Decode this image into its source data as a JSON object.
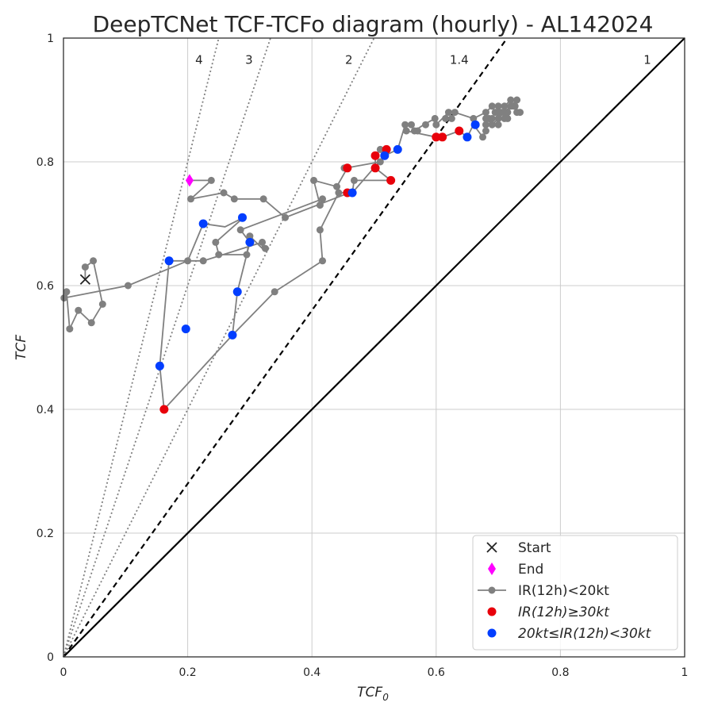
{
  "chart_data": {
    "type": "line",
    "title": "DeepTCNet TCF-TCFo diagram (hourly) - AL142024",
    "xlabel_main": "TCF",
    "xlabel_sub": "0",
    "ylabel": "TCF",
    "xlim": [
      0,
      1
    ],
    "ylim": [
      0,
      1
    ],
    "xticks": [
      "0",
      "0.2",
      "0.4",
      "0.6",
      "0.8",
      "1"
    ],
    "yticks": [
      "0",
      "0.2",
      "0.4",
      "0.6",
      "0.8",
      "1"
    ],
    "xtick_values": [
      0,
      0.2,
      0.4,
      0.6,
      0.8,
      1
    ],
    "ytick_values": [
      0,
      0.2,
      0.4,
      0.6,
      0.8,
      1
    ],
    "grid": true,
    "legend_position": "lower-right",
    "reference_lines": [
      {
        "ratio": 1,
        "label": "1",
        "style": "solid"
      },
      {
        "ratio": 1.4,
        "label": "1.4",
        "style": "dashed"
      },
      {
        "ratio": 2,
        "label": "2",
        "style": "dotted"
      },
      {
        "ratio": 3,
        "label": "3",
        "style": "dotted"
      },
      {
        "ratio": 4,
        "label": "4",
        "style": "dotted"
      }
    ],
    "legend": [
      {
        "label": "Start",
        "marker": "x",
        "color": "#222222"
      },
      {
        "label": "End",
        "marker": "diamond",
        "color": "#ff00ff"
      },
      {
        "label": "IR(12h)<20kt",
        "marker": "line-dot",
        "color": "#808080"
      },
      {
        "label": "IR(12h)≥30kt",
        "marker": "dot",
        "color": "#e8000b",
        "italic": true
      },
      {
        "label": "20kt≤IR(12h)<30kt",
        "marker": "dot",
        "color": "#023eff",
        "italic": true
      }
    ],
    "colors": {
      "track": "#808080",
      "high": "#e8000b",
      "mid": "#023eff",
      "end": "#ff00ff",
      "start": "#222222"
    },
    "start": [
      0.035,
      0.61
    ],
    "end": [
      0.203,
      0.77
    ],
    "track": [
      [
        0.035,
        0.61
      ],
      [
        0.035,
        0.63
      ],
      [
        0.048,
        0.64
      ],
      [
        0.063,
        0.57
      ],
      [
        0.045,
        0.54
      ],
      [
        0.024,
        0.56
      ],
      [
        0.01,
        0.53
      ],
      [
        0.005,
        0.59
      ],
      [
        0.001,
        0.58
      ],
      [
        0.104,
        0.6
      ],
      [
        0.2,
        0.64
      ],
      [
        0.17,
        0.64
      ],
      [
        0.21,
        0.64
      ],
      [
        0.225,
        0.64
      ],
      [
        0.32,
        0.67
      ],
      [
        0.32,
        0.66
      ],
      [
        0.3,
        0.68
      ],
      [
        0.295,
        0.65
      ],
      [
        0.25,
        0.65
      ],
      [
        0.245,
        0.67
      ],
      [
        0.29,
        0.71
      ],
      [
        0.26,
        0.695
      ],
      [
        0.225,
        0.7
      ],
      [
        0.2,
        0.64
      ],
      [
        0.17,
        0.64
      ],
      [
        0.155,
        0.47
      ],
      [
        0.162,
        0.4
      ],
      [
        0.272,
        0.52
      ],
      [
        0.28,
        0.59
      ],
      [
        0.3,
        0.67
      ],
      [
        0.285,
        0.69
      ],
      [
        0.417,
        0.74
      ],
      [
        0.413,
        0.73
      ],
      [
        0.403,
        0.77
      ],
      [
        0.44,
        0.76
      ],
      [
        0.457,
        0.79
      ],
      [
        0.455,
        0.79
      ],
      [
        0.51,
        0.8
      ],
      [
        0.52,
        0.82
      ],
      [
        0.51,
        0.82
      ],
      [
        0.502,
        0.81
      ],
      [
        0.502,
        0.79
      ],
      [
        0.527,
        0.77
      ],
      [
        0.468,
        0.77
      ],
      [
        0.465,
        0.75
      ],
      [
        0.443,
        0.75
      ],
      [
        0.413,
        0.69
      ],
      [
        0.417,
        0.64
      ],
      [
        0.34,
        0.59
      ],
      [
        0.272,
        0.52
      ]
    ],
    "track2": [
      [
        0.203,
        0.77
      ],
      [
        0.238,
        0.77
      ],
      [
        0.205,
        0.74
      ],
      [
        0.258,
        0.75
      ],
      [
        0.275,
        0.74
      ],
      [
        0.322,
        0.74
      ],
      [
        0.357,
        0.71
      ],
      [
        0.46,
        0.75
      ],
      [
        0.465,
        0.75
      ],
      [
        0.517,
        0.81
      ],
      [
        0.538,
        0.82
      ],
      [
        0.55,
        0.86
      ],
      [
        0.56,
        0.86
      ],
      [
        0.565,
        0.85
      ],
      [
        0.58,
        0.86
      ],
      [
        0.598,
        0.87
      ],
      [
        0.6,
        0.86
      ],
      [
        0.61,
        0.87
      ],
      [
        0.62,
        0.88
      ],
      [
        0.63,
        0.88
      ],
      [
        0.66,
        0.87
      ],
      [
        0.68,
        0.88
      ],
      [
        0.69,
        0.89
      ],
      [
        0.7,
        0.89
      ],
      [
        0.71,
        0.89
      ],
      [
        0.72,
        0.9
      ],
      [
        0.73,
        0.9
      ],
      [
        0.72,
        0.89
      ],
      [
        0.71,
        0.88
      ],
      [
        0.7,
        0.87
      ],
      [
        0.69,
        0.86
      ],
      [
        0.68,
        0.87
      ],
      [
        0.68,
        0.85
      ],
      [
        0.675,
        0.84
      ],
      [
        0.66,
        0.86
      ],
      [
        0.65,
        0.84
      ],
      [
        0.637,
        0.85
      ],
      [
        0.61,
        0.84
      ],
      [
        0.6,
        0.84
      ],
      [
        0.552,
        0.85
      ],
      [
        0.55,
        0.86
      ]
    ],
    "gray_points": [
      [
        0.035,
        0.63
      ],
      [
        0.048,
        0.64
      ],
      [
        0.063,
        0.57
      ],
      [
        0.045,
        0.54
      ],
      [
        0.024,
        0.56
      ],
      [
        0.01,
        0.53
      ],
      [
        0.005,
        0.59
      ],
      [
        0.001,
        0.58
      ],
      [
        0.104,
        0.6
      ],
      [
        0.2,
        0.64
      ],
      [
        0.225,
        0.64
      ],
      [
        0.32,
        0.67
      ],
      [
        0.325,
        0.66
      ],
      [
        0.3,
        0.68
      ],
      [
        0.295,
        0.65
      ],
      [
        0.25,
        0.65
      ],
      [
        0.245,
        0.67
      ],
      [
        0.285,
        0.69
      ],
      [
        0.417,
        0.74
      ],
      [
        0.413,
        0.73
      ],
      [
        0.403,
        0.77
      ],
      [
        0.44,
        0.76
      ],
      [
        0.443,
        0.75
      ],
      [
        0.413,
        0.69
      ],
      [
        0.417,
        0.64
      ],
      [
        0.34,
        0.59
      ],
      [
        0.238,
        0.77
      ],
      [
        0.205,
        0.74
      ],
      [
        0.258,
        0.75
      ],
      [
        0.275,
        0.74
      ],
      [
        0.322,
        0.74
      ],
      [
        0.357,
        0.71
      ],
      [
        0.468,
        0.77
      ],
      [
        0.452,
        0.79
      ],
      [
        0.51,
        0.8
      ],
      [
        0.51,
        0.82
      ],
      [
        0.55,
        0.86
      ],
      [
        0.56,
        0.86
      ],
      [
        0.565,
        0.85
      ],
      [
        0.583,
        0.86
      ],
      [
        0.598,
        0.87
      ],
      [
        0.6,
        0.86
      ],
      [
        0.615,
        0.87
      ],
      [
        0.62,
        0.88
      ],
      [
        0.625,
        0.87
      ],
      [
        0.63,
        0.88
      ],
      [
        0.66,
        0.87
      ],
      [
        0.68,
        0.88
      ],
      [
        0.685,
        0.87
      ],
      [
        0.69,
        0.89
      ],
      [
        0.695,
        0.88
      ],
      [
        0.7,
        0.89
      ],
      [
        0.705,
        0.88
      ],
      [
        0.71,
        0.89
      ],
      [
        0.715,
        0.88
      ],
      [
        0.72,
        0.9
      ],
      [
        0.725,
        0.89
      ],
      [
        0.73,
        0.9
      ],
      [
        0.73,
        0.88
      ],
      [
        0.72,
        0.89
      ],
      [
        0.71,
        0.88
      ],
      [
        0.7,
        0.87
      ],
      [
        0.715,
        0.87
      ],
      [
        0.69,
        0.86
      ],
      [
        0.68,
        0.87
      ],
      [
        0.68,
        0.86
      ],
      [
        0.7,
        0.86
      ],
      [
        0.69,
        0.87
      ],
      [
        0.675,
        0.84
      ],
      [
        0.68,
        0.85
      ],
      [
        0.7,
        0.88
      ],
      [
        0.727,
        0.89
      ],
      [
        0.735,
        0.88
      ],
      [
        0.71,
        0.87
      ],
      [
        0.552,
        0.85
      ],
      [
        0.57,
        0.85
      ]
    ],
    "red_points": [
      [
        0.162,
        0.4
      ],
      [
        0.457,
        0.75
      ],
      [
        0.457,
        0.79
      ],
      [
        0.502,
        0.81
      ],
      [
        0.52,
        0.82
      ],
      [
        0.502,
        0.79
      ],
      [
        0.527,
        0.77
      ],
      [
        0.6,
        0.84
      ],
      [
        0.61,
        0.84
      ],
      [
        0.637,
        0.85
      ]
    ],
    "blue_points": [
      [
        0.155,
        0.47
      ],
      [
        0.197,
        0.53
      ],
      [
        0.272,
        0.52
      ],
      [
        0.28,
        0.59
      ],
      [
        0.17,
        0.64
      ],
      [
        0.225,
        0.7
      ],
      [
        0.288,
        0.71
      ],
      [
        0.3,
        0.67
      ],
      [
        0.465,
        0.75
      ],
      [
        0.517,
        0.81
      ],
      [
        0.538,
        0.82
      ],
      [
        0.65,
        0.84
      ],
      [
        0.663,
        0.86
      ]
    ]
  }
}
